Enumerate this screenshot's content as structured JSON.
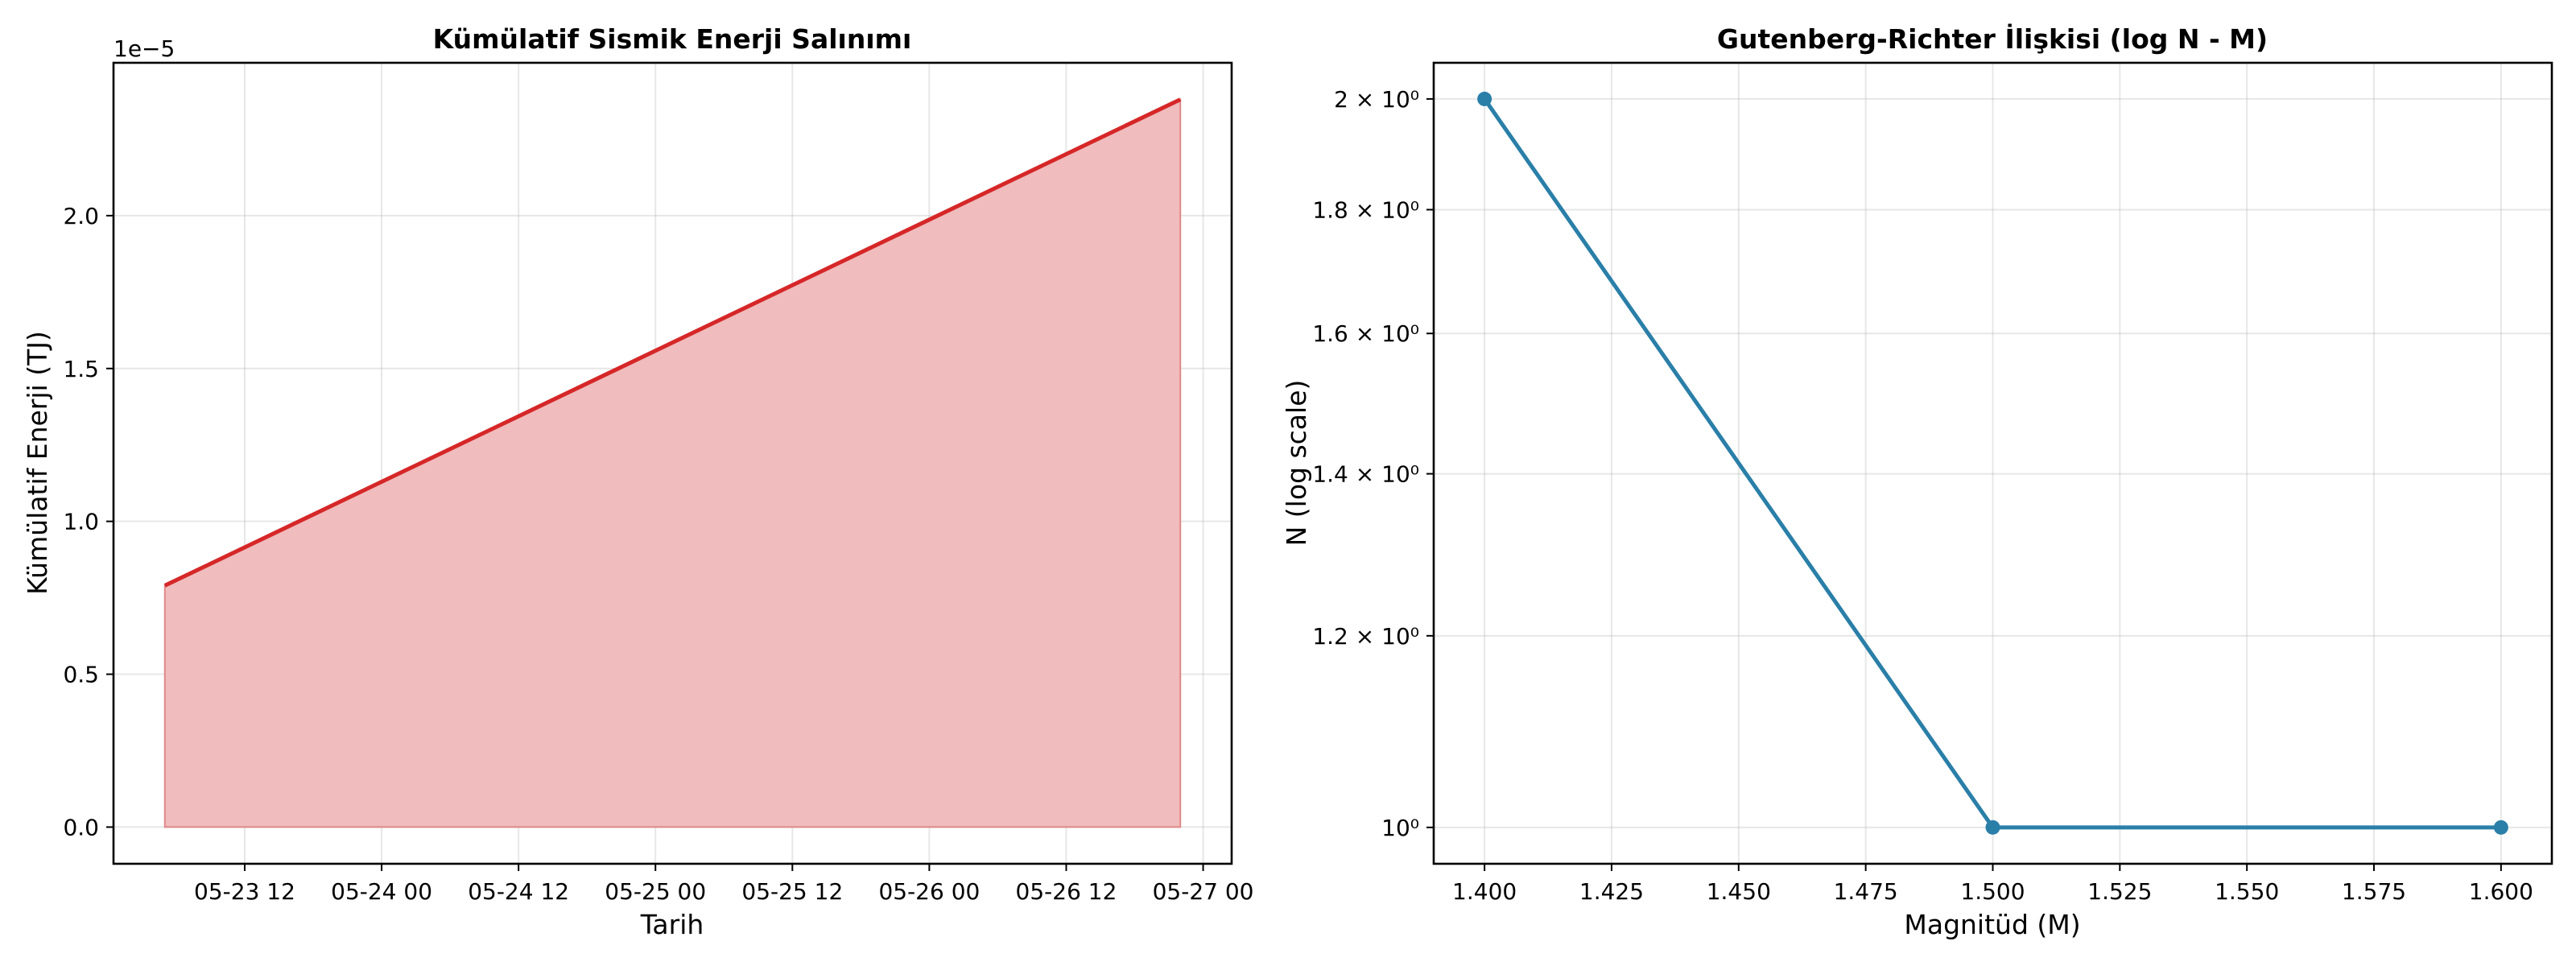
{
  "chart_data": [
    {
      "type": "area",
      "title": "Kümülatif Sismik Enerji Salınımı",
      "xlabel": "Tarih",
      "ylabel": "Kümülatif Enerji (TJ)",
      "y_offset_label": "1e−5",
      "y_scale_factor": 1e-05,
      "x_ticks": [
        "05-23 12",
        "05-24 00",
        "05-24 12",
        "05-25 00",
        "05-25 12",
        "05-26 00",
        "05-26 12",
        "05-27 00"
      ],
      "y_ticks": [
        "0.0",
        "0.5",
        "1.0",
        "1.5",
        "2.0"
      ],
      "x": [
        "2025-05-23 05:00",
        "2025-05-26 22:00"
      ],
      "values": [
        7.9e-06,
        2.38e-05
      ],
      "xlim": [
        "2025-05-23 00:30",
        "2025-05-27 02:30"
      ],
      "ylim": [
        -1.2e-06,
        2.5e-05
      ],
      "line_color": "#d62728",
      "fill_color": "#f0bcbd",
      "grid": true
    },
    {
      "type": "line",
      "title": "Gutenberg-Richter İlişkisi (log N - M)",
      "xlabel": "Magnitüd (M)",
      "ylabel": "N (log scale)",
      "y_scale": "log",
      "x": [
        1.4,
        1.5,
        1.6
      ],
      "values": [
        2,
        1,
        1
      ],
      "x_ticks": [
        "1.400",
        "1.425",
        "1.450",
        "1.475",
        "1.500",
        "1.525",
        "1.550",
        "1.575",
        "1.600"
      ],
      "y_ticks": [
        {
          "value": 1.0,
          "label": "10⁰"
        },
        {
          "value": 1.2,
          "label": "1.2 × 10⁰"
        },
        {
          "value": 1.4,
          "label": "1.4 × 10⁰"
        },
        {
          "value": 1.6,
          "label": "1.6 × 10⁰"
        },
        {
          "value": 1.8,
          "label": "1.8 × 10⁰"
        },
        {
          "value": 2.0,
          "label": "2 × 10⁰"
        }
      ],
      "xlim": [
        1.39,
        1.61
      ],
      "ylim": [
        0.966,
        2.07
      ],
      "line_color": "#2a7fa8",
      "grid": true
    }
  ]
}
